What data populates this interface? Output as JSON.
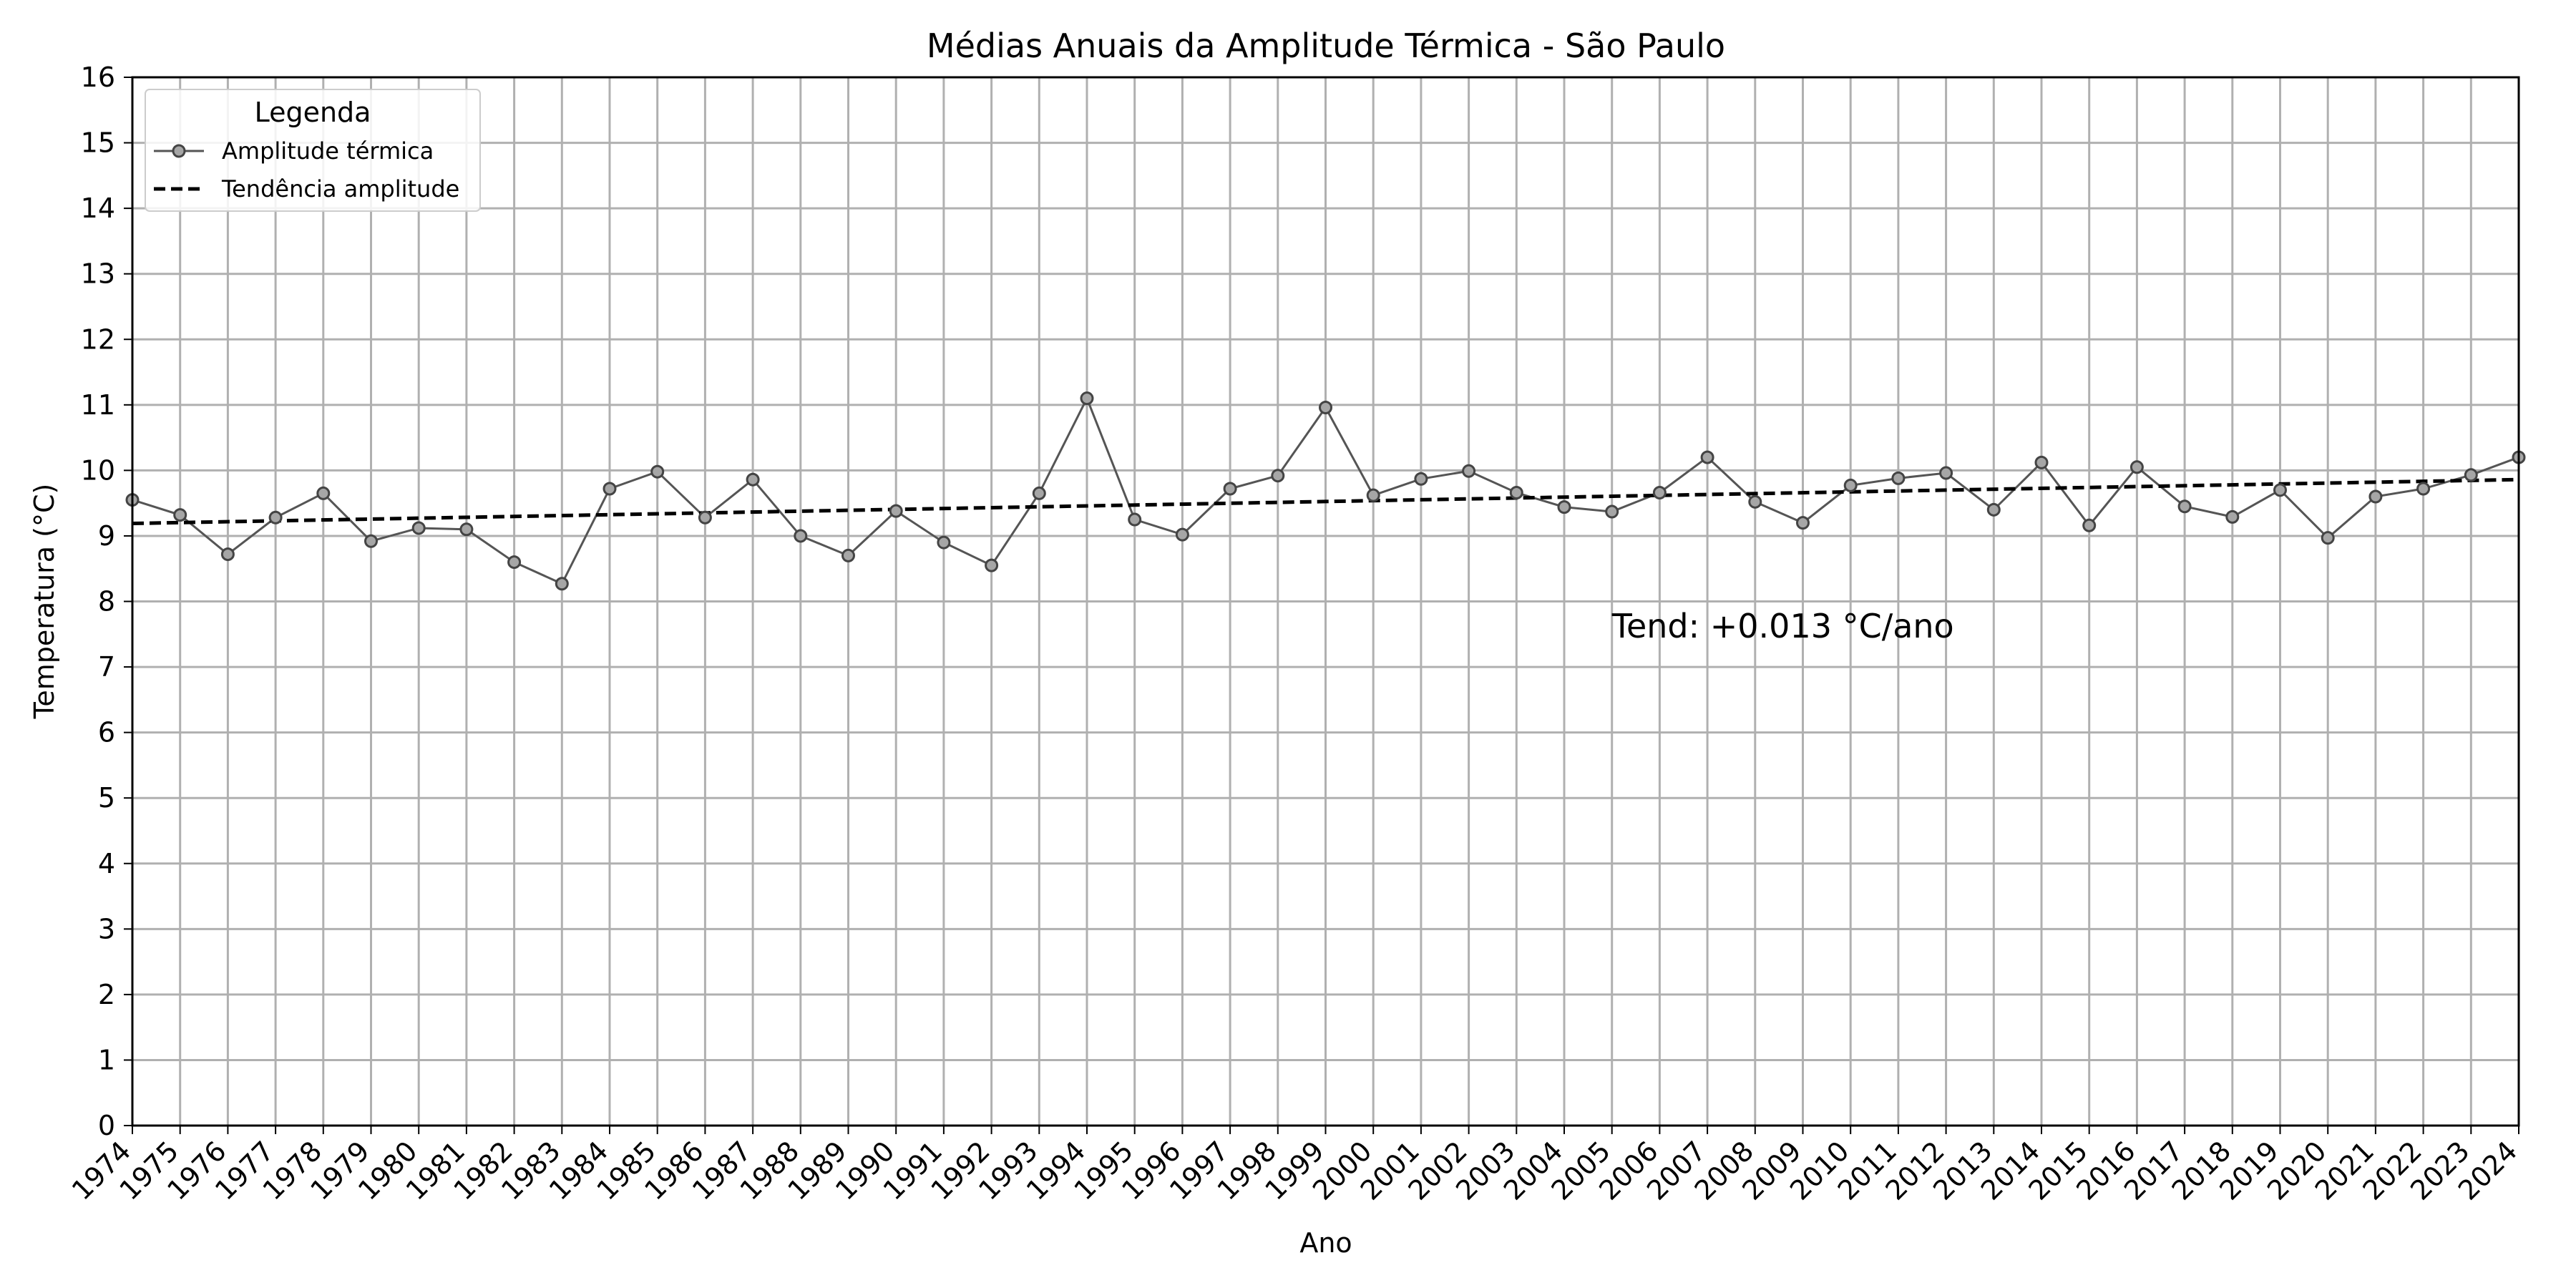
{
  "chart_data": {
    "type": "line",
    "title": "Médias Anuais da Amplitude Térmica - São Paulo",
    "xlabel": "Ano",
    "ylabel": "Temperatura (°C)",
    "xlim": [
      1974,
      2024
    ],
    "ylim": [
      0,
      16
    ],
    "yticks": [
      0,
      1,
      2,
      3,
      4,
      5,
      6,
      7,
      8,
      9,
      10,
      11,
      12,
      13,
      14,
      15,
      16
    ],
    "grid": true,
    "legend": {
      "title": "Legenda",
      "placement": "top-left",
      "entries": [
        "Amplitude térmica",
        "Tendência amplitude"
      ]
    },
    "x": [
      1974,
      1975,
      1976,
      1977,
      1978,
      1979,
      1980,
      1981,
      1982,
      1983,
      1984,
      1985,
      1986,
      1987,
      1988,
      1989,
      1990,
      1991,
      1992,
      1993,
      1994,
      1995,
      1996,
      1997,
      1998,
      1999,
      2000,
      2001,
      2002,
      2003,
      2004,
      2005,
      2006,
      2007,
      2008,
      2009,
      2010,
      2011,
      2012,
      2013,
      2014,
      2015,
      2016,
      2017,
      2018,
      2019,
      2020,
      2021,
      2022,
      2023,
      2024
    ],
    "series": [
      {
        "name": "Amplitude térmica",
        "color": "#555555",
        "marker_fill": "#a6a6a6",
        "values": [
          9.55,
          9.32,
          8.72,
          9.28,
          9.65,
          8.92,
          9.12,
          9.1,
          8.6,
          8.27,
          9.72,
          9.98,
          9.28,
          9.86,
          9.0,
          8.7,
          9.38,
          8.9,
          8.55,
          9.65,
          11.1,
          9.25,
          9.02,
          9.72,
          9.92,
          10.96,
          9.62,
          9.87,
          9.99,
          9.66,
          9.44,
          9.37,
          9.66,
          10.2,
          9.52,
          9.2,
          9.77,
          9.88,
          9.96,
          9.4,
          10.12,
          9.16,
          10.05,
          9.45,
          9.29,
          9.7,
          8.97,
          9.6,
          9.72,
          9.93,
          10.2
        ]
      },
      {
        "name": "Tendência amplitude",
        "color": "#000000",
        "style": "dashed",
        "start": [
          1974,
          9.19
        ],
        "end": [
          2024,
          9.86
        ]
      }
    ],
    "annotations": [
      {
        "text": "Tend: +0.013 °C/ano",
        "x": 2005,
        "y": 7.45
      }
    ]
  }
}
